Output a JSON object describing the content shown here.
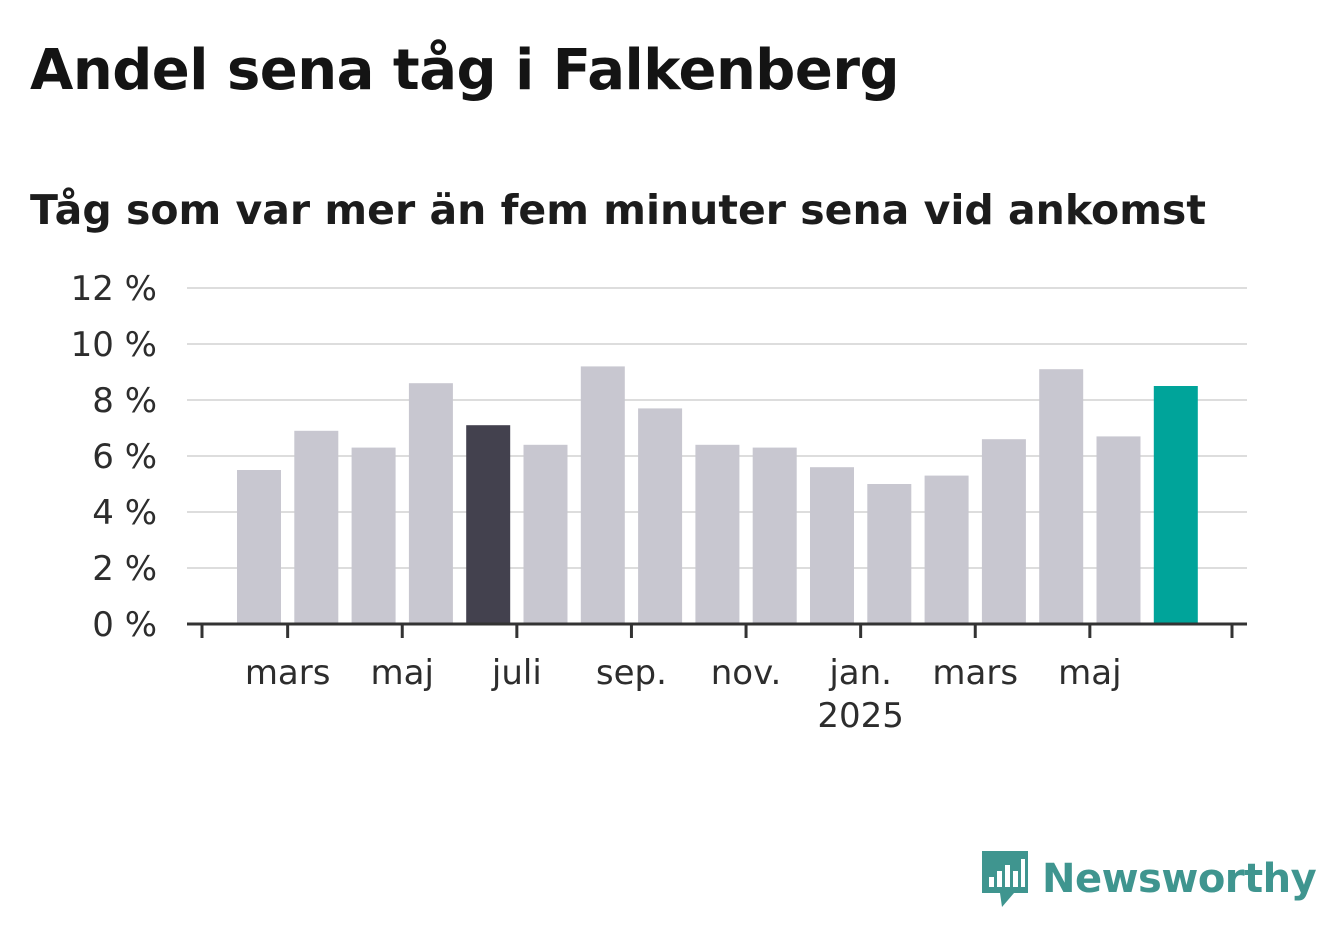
{
  "title": "Andel sena tåg i Falkenberg",
  "subtitle": "Tåg som var mer än fem minuter sena vid ankomst",
  "logo": {
    "text": "Newsworthy",
    "icon": "newsworthy-logo-icon",
    "color": "#3f958f"
  },
  "chart_data": {
    "type": "bar",
    "y_unit": "%",
    "ylim": [
      0,
      12
    ],
    "yticks": [
      "12 %",
      "10 %",
      "8 %",
      "6 %",
      "4 %",
      "2 %",
      "0 %"
    ],
    "grid": true,
    "x_tick_labels": [
      {
        "label": "mars",
        "sub": "",
        "after_bar": 1
      },
      {
        "label": "maj",
        "sub": "",
        "after_bar": 3
      },
      {
        "label": "juli",
        "sub": "",
        "after_bar": 5
      },
      {
        "label": "sep.",
        "sub": "",
        "after_bar": 7
      },
      {
        "label": "nov.",
        "sub": "",
        "after_bar": 9
      },
      {
        "label": "jan.",
        "sub": "2025",
        "after_bar": 11
      },
      {
        "label": "mars",
        "sub": "",
        "after_bar": 13
      },
      {
        "label": "maj",
        "sub": "",
        "after_bar": 15
      }
    ],
    "bars": [
      {
        "value": 5.5,
        "color": "#c8c7d0"
      },
      {
        "value": 6.9,
        "color": "#c8c7d0"
      },
      {
        "value": 6.3,
        "color": "#c8c7d0"
      },
      {
        "value": 8.6,
        "color": "#c8c7d0"
      },
      {
        "value": 7.1,
        "color": "#43414e"
      },
      {
        "value": 6.4,
        "color": "#c8c7d0"
      },
      {
        "value": 9.2,
        "color": "#c8c7d0"
      },
      {
        "value": 7.7,
        "color": "#c8c7d0"
      },
      {
        "value": 6.4,
        "color": "#c8c7d0"
      },
      {
        "value": 6.3,
        "color": "#c8c7d0"
      },
      {
        "value": 5.6,
        "color": "#c8c7d0"
      },
      {
        "value": 5.0,
        "color": "#c8c7d0"
      },
      {
        "value": 5.3,
        "color": "#c8c7d0"
      },
      {
        "value": 6.6,
        "color": "#c8c7d0"
      },
      {
        "value": 9.1,
        "color": "#c8c7d0"
      },
      {
        "value": 6.7,
        "color": "#c8c7d0"
      },
      {
        "value": 8.5,
        "color": "#00a49a"
      }
    ],
    "colors": {
      "default": "#c8c7d0",
      "highlight_dark": "#43414e",
      "highlight_latest": "#00a49a",
      "grid": "#dddddd",
      "axis": "#333333"
    }
  }
}
